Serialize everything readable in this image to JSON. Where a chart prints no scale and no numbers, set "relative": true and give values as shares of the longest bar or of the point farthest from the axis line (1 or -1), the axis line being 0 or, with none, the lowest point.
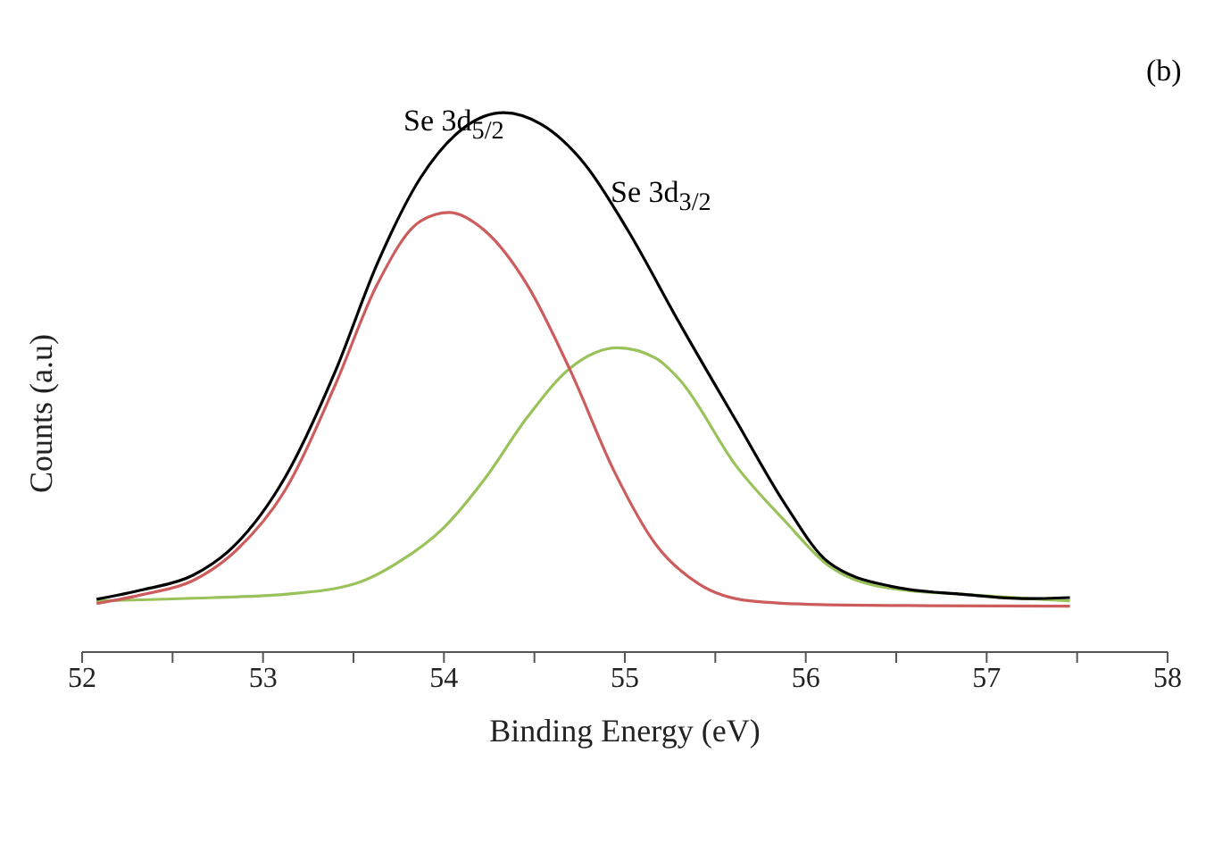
{
  "chart_data": {
    "type": "line",
    "relative": true,
    "xlabel": "Binding Energy (eV)",
    "ylabel": "Counts (a.u)",
    "annotations": [
      "Se 3d$_{5/2}$",
      "Se 3d$_{3/2}$",
      "(b)"
    ],
    "xlim": [
      52,
      58
    ],
    "xticks": [
      52,
      {
        "value": 52.5,
        "label": null
      },
      53,
      {
        "value": 53.5,
        "label": null
      },
      54,
      {
        "value": 54.5,
        "label": null
      },
      55,
      {
        "value": 55.5,
        "label": null
      },
      56,
      {
        "value": 56.5,
        "label": null
      },
      57,
      {
        "value": 57.5,
        "label": null
      },
      58
    ],
    "tick_labels": "x",
    "series": [
      {
        "color": "#000000",
        "x": [
          52.08,
          52.34,
          52.61,
          52.85,
          53.12,
          53.4,
          53.63,
          53.87,
          54.11,
          54.33,
          54.54,
          54.78,
          55.02,
          55.3,
          55.62,
          55.89,
          56.12,
          56.47,
          56.87,
          57.22,
          57.46
        ],
        "values": [
          0.098,
          0.116,
          0.142,
          0.2,
          0.323,
          0.521,
          0.719,
          0.879,
          0.972,
          1,
          0.978,
          0.904,
          0.78,
          0.611,
          0.426,
          0.272,
          0.168,
          0.122,
          0.107,
          0.099,
          0.101
        ]
      },
      {
        "color": "#cd5c5c",
        "x": [
          52.08,
          52.34,
          52.61,
          52.85,
          53.12,
          53.4,
          53.63,
          53.87,
          54.03,
          54.23,
          54.46,
          54.7,
          54.94,
          55.17,
          55.41,
          55.69,
          56.08,
          56.67,
          57.46
        ],
        "values": [
          0.09,
          0.107,
          0.132,
          0.188,
          0.299,
          0.496,
          0.681,
          0.799,
          0.815,
          0.78,
          0.681,
          0.521,
          0.336,
          0.2,
          0.126,
          0.095,
          0.088,
          0.086,
          0.085
        ]
      },
      {
        "color": "#9ac25a",
        "x": [
          52.08,
          52.73,
          53.12,
          53.52,
          53.76,
          54.0,
          54.23,
          54.46,
          54.7,
          54.96,
          55.17,
          55.3,
          55.62,
          55.89,
          56.12,
          56.47,
          56.87,
          57.46
        ],
        "values": [
          0.095,
          0.101,
          0.107,
          0.128,
          0.169,
          0.231,
          0.323,
          0.435,
          0.527,
          0.564,
          0.545,
          0.506,
          0.343,
          0.241,
          0.162,
          0.118,
          0.107,
          0.095
        ]
      }
    ]
  }
}
